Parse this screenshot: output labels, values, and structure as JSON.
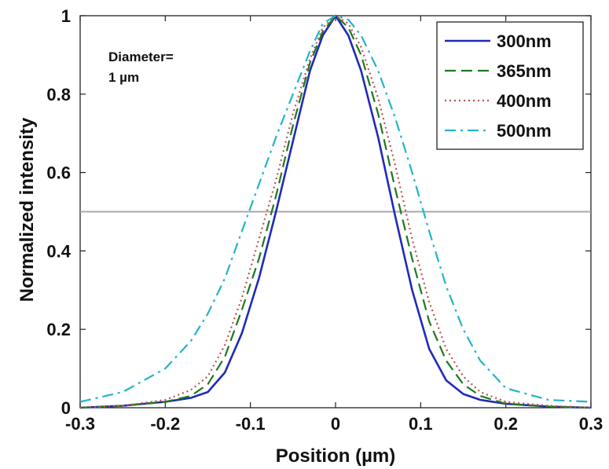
{
  "chart_data": {
    "type": "line",
    "xlabel": "Position (µm)",
    "ylabel": "Normalized intensity",
    "xlim": [
      -0.3,
      0.3
    ],
    "ylim": [
      0,
      1
    ],
    "xticks": [
      "-0.3",
      "-0.2",
      "-0.1",
      "0",
      "0.1",
      "0.2",
      "0.3"
    ],
    "yticks": [
      "0",
      "0.2",
      "0.4",
      "0.6",
      "0.8",
      "1"
    ],
    "grid": false,
    "legend_position": "top-right",
    "annotation": [
      "Diameter=",
      "1 µm"
    ],
    "reference_line": {
      "y": 0.5,
      "color": "#a8a8a8"
    },
    "series": [
      {
        "name": "300nm",
        "color": "#1f2bb8",
        "style": "solid",
        "x": [
          -0.3,
          -0.25,
          -0.2,
          -0.17,
          -0.15,
          -0.13,
          -0.11,
          -0.09,
          -0.07,
          -0.05,
          -0.03,
          -0.015,
          0,
          0.015,
          0.03,
          0.05,
          0.07,
          0.09,
          0.11,
          0.13,
          0.15,
          0.17,
          0.2,
          0.25,
          0.3
        ],
        "y": [
          0.0,
          0.005,
          0.015,
          0.025,
          0.04,
          0.09,
          0.19,
          0.33,
          0.5,
          0.68,
          0.86,
          0.95,
          1.0,
          0.95,
          0.86,
          0.69,
          0.49,
          0.3,
          0.15,
          0.07,
          0.035,
          0.02,
          0.01,
          0.003,
          0.0
        ]
      },
      {
        "name": "365nm",
        "color": "#1d7a1d",
        "style": "dashed",
        "x": [
          -0.3,
          -0.25,
          -0.2,
          -0.17,
          -0.15,
          -0.13,
          -0.11,
          -0.09,
          -0.07,
          -0.05,
          -0.03,
          -0.015,
          0,
          0.015,
          0.03,
          0.05,
          0.07,
          0.09,
          0.11,
          0.13,
          0.15,
          0.17,
          0.2,
          0.25,
          0.3
        ],
        "y": [
          0.0,
          0.005,
          0.015,
          0.03,
          0.06,
          0.13,
          0.25,
          0.38,
          0.54,
          0.72,
          0.88,
          0.96,
          1.0,
          0.97,
          0.9,
          0.75,
          0.56,
          0.38,
          0.22,
          0.12,
          0.06,
          0.03,
          0.01,
          0.003,
          0.0
        ]
      },
      {
        "name": "400nm",
        "color": "#c0504d",
        "style": "dotted",
        "x": [
          -0.3,
          -0.25,
          -0.2,
          -0.17,
          -0.15,
          -0.13,
          -0.11,
          -0.09,
          -0.07,
          -0.05,
          -0.03,
          -0.015,
          0,
          0.015,
          0.03,
          0.05,
          0.07,
          0.09,
          0.11,
          0.13,
          0.15,
          0.17,
          0.2,
          0.25,
          0.3
        ],
        "y": [
          0.0,
          0.005,
          0.02,
          0.045,
          0.08,
          0.16,
          0.28,
          0.43,
          0.58,
          0.75,
          0.89,
          0.97,
          1.0,
          0.98,
          0.92,
          0.79,
          0.62,
          0.43,
          0.27,
          0.15,
          0.08,
          0.04,
          0.015,
          0.005,
          0.0
        ]
      },
      {
        "name": "500nm",
        "color": "#20b5c8",
        "style": "dashdot",
        "x": [
          -0.3,
          -0.25,
          -0.2,
          -0.17,
          -0.15,
          -0.13,
          -0.11,
          -0.09,
          -0.07,
          -0.05,
          -0.03,
          -0.015,
          0,
          0.015,
          0.03,
          0.05,
          0.07,
          0.09,
          0.11,
          0.13,
          0.15,
          0.17,
          0.2,
          0.25,
          0.3
        ],
        "y": [
          0.015,
          0.04,
          0.1,
          0.17,
          0.24,
          0.33,
          0.45,
          0.57,
          0.69,
          0.8,
          0.91,
          0.98,
          1.0,
          0.99,
          0.95,
          0.86,
          0.74,
          0.6,
          0.45,
          0.31,
          0.2,
          0.12,
          0.05,
          0.02,
          0.015
        ]
      }
    ]
  }
}
